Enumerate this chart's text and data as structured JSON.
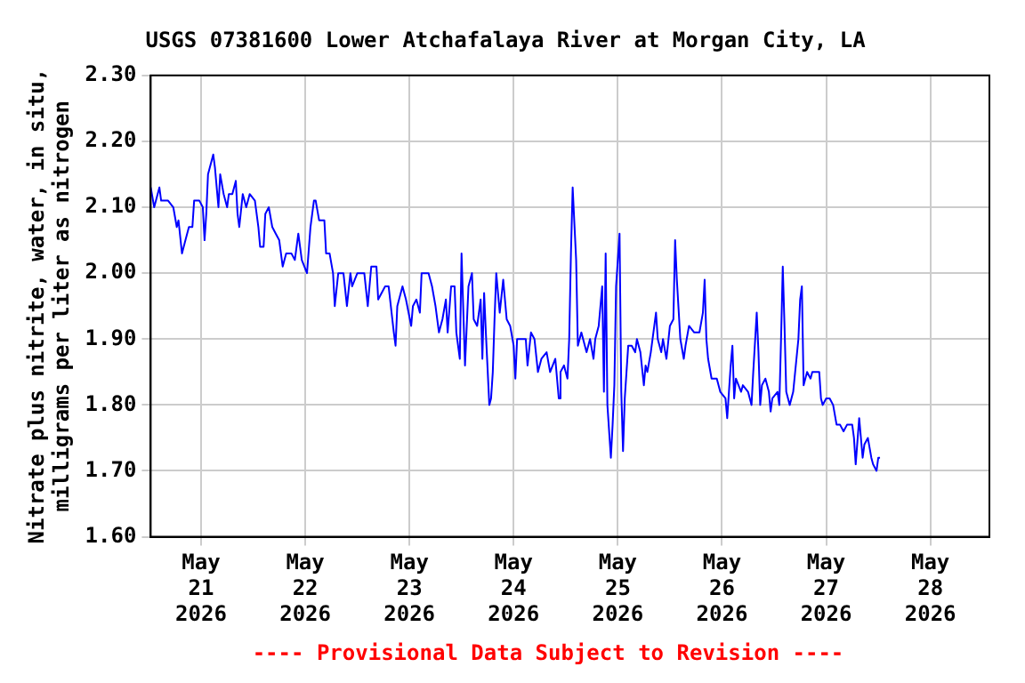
{
  "chart_data": {
    "type": "line",
    "title": "USGS 07381600 Lower Atchafalaya River at Morgan City, LA",
    "ylabel": "Nitrate plus nitrite, water, in situ,\nmilligrams per liter as nitrogen",
    "annotations": [
      "---- Provisional Data Subject to Revision ----"
    ],
    "xlim": [
      "2026-05-20T12:24",
      "2026-05-28T13:36"
    ],
    "xticks": [
      {
        "value": "2026-05-21",
        "label": "May 21 2026"
      },
      {
        "value": "2026-05-22",
        "label": "May 22 2026"
      },
      {
        "value": "2026-05-23",
        "label": "May 23 2026"
      },
      {
        "value": "2026-05-24",
        "label": "May 24 2026"
      },
      {
        "value": "2026-05-25",
        "label": "May 25 2026"
      },
      {
        "value": "2026-05-26",
        "label": "May 26 2026"
      },
      {
        "value": "2026-05-27",
        "label": "May 27 2026"
      },
      {
        "value": "2026-05-28",
        "label": "May 28 2026"
      }
    ],
    "ylim": [
      1.6,
      2.3
    ],
    "yticks": [
      {
        "value": 1.6,
        "label": "1.60"
      },
      {
        "value": 1.7,
        "label": "1.70"
      },
      {
        "value": 1.8,
        "label": "1.80"
      },
      {
        "value": 1.9,
        "label": "1.90"
      },
      {
        "value": 2.0,
        "label": "2.00"
      },
      {
        "value": 2.1,
        "label": "2.10"
      },
      {
        "value": 2.2,
        "label": "2.20"
      },
      {
        "value": 2.3,
        "label": "2.30"
      }
    ],
    "grid": true,
    "legend": false,
    "marker": "none",
    "line_style": "solid",
    "x": [
      "2026-05-20T12:24",
      "2026-05-20T13:12",
      "2026-05-20T14:24",
      "2026-05-20T14:48",
      "2026-05-20T16:24",
      "2026-05-20T17:36",
      "2026-05-20T18:24",
      "2026-05-20T18:48",
      "2026-05-20T19:36",
      "2026-05-20T20:24",
      "2026-05-20T21:12",
      "2026-05-20T22:00",
      "2026-05-20T22:24",
      "2026-05-20T23:36",
      "2026-05-21T00:24",
      "2026-05-21T00:48",
      "2026-05-21T01:12",
      "2026-05-21T01:36",
      "2026-05-21T02:24",
      "2026-05-21T02:48",
      "2026-05-21T03:12",
      "2026-05-21T04:00",
      "2026-05-21T04:24",
      "2026-05-21T05:12",
      "2026-05-21T06:00",
      "2026-05-21T06:24",
      "2026-05-21T07:12",
      "2026-05-21T08:00",
      "2026-05-21T08:24",
      "2026-05-21T08:48",
      "2026-05-21T09:36",
      "2026-05-21T10:24",
      "2026-05-21T11:12",
      "2026-05-21T12:24",
      "2026-05-21T13:12",
      "2026-05-21T13:36",
      "2026-05-21T14:24",
      "2026-05-21T14:48",
      "2026-05-21T15:36",
      "2026-05-21T16:24",
      "2026-05-21T17:12",
      "2026-05-21T18:00",
      "2026-05-21T18:48",
      "2026-05-21T19:36",
      "2026-05-21T20:48",
      "2026-05-21T21:36",
      "2026-05-21T22:24",
      "2026-05-21T23:12",
      "2026-05-22T00:24",
      "2026-05-22T01:12",
      "2026-05-22T02:00",
      "2026-05-22T02:24",
      "2026-05-22T03:12",
      "2026-05-22T04:24",
      "2026-05-22T04:48",
      "2026-05-22T05:36",
      "2026-05-22T06:24",
      "2026-05-22T06:48",
      "2026-05-22T07:36",
      "2026-05-22T08:48",
      "2026-05-22T09:36",
      "2026-05-22T10:24",
      "2026-05-22T10:48",
      "2026-05-22T12:00",
      "2026-05-22T12:48",
      "2026-05-22T13:36",
      "2026-05-22T14:24",
      "2026-05-22T15:12",
      "2026-05-22T16:24",
      "2026-05-22T16:48",
      "2026-05-22T18:24",
      "2026-05-22T19:12",
      "2026-05-22T20:24",
      "2026-05-22T20:48",
      "2026-05-22T21:12",
      "2026-05-22T22:24",
      "2026-05-22T23:12",
      "2026-05-23T00:24",
      "2026-05-23T00:48",
      "2026-05-23T01:36",
      "2026-05-23T02:24",
      "2026-05-23T02:48",
      "2026-05-23T04:24",
      "2026-05-23T05:12",
      "2026-05-23T06:00",
      "2026-05-23T06:48",
      "2026-05-23T07:36",
      "2026-05-23T08:24",
      "2026-05-23T08:48",
      "2026-05-23T09:36",
      "2026-05-23T10:24",
      "2026-05-23T10:48",
      "2026-05-23T11:36",
      "2026-05-23T12:00",
      "2026-05-23T12:48",
      "2026-05-23T13:36",
      "2026-05-23T14:24",
      "2026-05-23T14:48",
      "2026-05-23T15:36",
      "2026-05-23T16:24",
      "2026-05-23T16:48",
      "2026-05-23T17:12",
      "2026-05-23T17:36",
      "2026-05-23T18:24",
      "2026-05-23T18:48",
      "2026-05-23T19:12",
      "2026-05-23T19:36",
      "2026-05-23T20:00",
      "2026-05-23T20:48",
      "2026-05-23T21:36",
      "2026-05-23T22:24",
      "2026-05-23T23:12",
      "2026-05-24T00:00",
      "2026-05-24T00:24",
      "2026-05-24T00:48",
      "2026-05-24T02:00",
      "2026-05-24T02:48",
      "2026-05-24T03:12",
      "2026-05-24T04:00",
      "2026-05-24T04:48",
      "2026-05-24T05:36",
      "2026-05-24T06:24",
      "2026-05-24T07:36",
      "2026-05-24T08:24",
      "2026-05-24T09:36",
      "2026-05-24T10:24",
      "2026-05-24T10:48",
      "2026-05-24T11:36",
      "2026-05-24T12:24",
      "2026-05-24T12:48",
      "2026-05-24T13:12",
      "2026-05-24T13:36",
      "2026-05-24T14:24",
      "2026-05-24T14:48",
      "2026-05-24T15:36",
      "2026-05-24T16:48",
      "2026-05-24T17:36",
      "2026-05-24T18:24",
      "2026-05-24T18:48",
      "2026-05-24T19:36",
      "2026-05-24T20:24",
      "2026-05-24T20:48",
      "2026-05-24T21:12",
      "2026-05-24T21:36",
      "2026-05-24T22:24",
      "2026-05-24T22:48",
      "2026-05-24T23:12",
      "2026-05-24T23:36",
      "2026-05-25T00:24",
      "2026-05-25T00:48",
      "2026-05-25T01:12",
      "2026-05-25T01:36",
      "2026-05-25T02:24",
      "2026-05-25T03:12",
      "2026-05-25T04:00",
      "2026-05-25T04:24",
      "2026-05-25T05:12",
      "2026-05-25T06:00",
      "2026-05-25T06:24",
      "2026-05-25T06:48",
      "2026-05-25T07:36",
      "2026-05-25T08:48",
      "2026-05-25T09:12",
      "2026-05-25T10:00",
      "2026-05-25T10:24",
      "2026-05-25T11:12",
      "2026-05-25T12:00",
      "2026-05-25T12:48",
      "2026-05-25T13:12",
      "2026-05-25T13:36",
      "2026-05-25T14:24",
      "2026-05-25T15:12",
      "2026-05-25T15:36",
      "2026-05-25T16:24",
      "2026-05-25T17:36",
      "2026-05-25T18:48",
      "2026-05-25T19:36",
      "2026-05-25T20:00",
      "2026-05-25T20:24",
      "2026-05-25T20:48",
      "2026-05-25T21:36",
      "2026-05-25T22:48",
      "2026-05-25T23:36",
      "2026-05-26T00:48",
      "2026-05-26T01:12",
      "2026-05-26T02:00",
      "2026-05-26T02:24",
      "2026-05-26T02:48",
      "2026-05-26T03:12",
      "2026-05-26T04:24",
      "2026-05-26T04:48",
      "2026-05-26T06:00",
      "2026-05-26T06:48",
      "2026-05-26T07:12",
      "2026-05-26T08:00",
      "2026-05-26T08:24",
      "2026-05-26T08:48",
      "2026-05-26T09:12",
      "2026-05-26T10:00",
      "2026-05-26T10:48",
      "2026-05-26T11:12",
      "2026-05-26T11:36",
      "2026-05-26T12:48",
      "2026-05-26T13:12",
      "2026-05-26T13:36",
      "2026-05-26T14:00",
      "2026-05-26T14:24",
      "2026-05-26T14:48",
      "2026-05-26T15:36",
      "2026-05-26T16:24",
      "2026-05-26T17:36",
      "2026-05-26T18:00",
      "2026-05-26T18:24",
      "2026-05-26T18:48",
      "2026-05-26T19:36",
      "2026-05-26T20:24",
      "2026-05-26T20:48",
      "2026-05-26T22:24",
      "2026-05-26T22:48",
      "2026-05-26T23:12",
      "2026-05-27T00:00",
      "2026-05-27T00:48",
      "2026-05-27T01:36",
      "2026-05-27T02:24",
      "2026-05-27T03:12",
      "2026-05-27T04:00",
      "2026-05-27T04:48",
      "2026-05-27T06:00",
      "2026-05-27T06:24",
      "2026-05-27T06:48",
      "2026-05-27T07:36",
      "2026-05-27T08:24",
      "2026-05-27T08:48",
      "2026-05-27T09:36",
      "2026-05-27T10:24",
      "2026-05-27T10:48",
      "2026-05-27T11:36",
      "2026-05-27T12:00",
      "2026-05-27T12:24"
    ],
    "series": [
      {
        "color": "#0000ff",
        "values": [
          2.13,
          2.1,
          2.13,
          2.11,
          2.11,
          2.1,
          2.07,
          2.08,
          2.03,
          2.05,
          2.07,
          2.07,
          2.11,
          2.11,
          2.1,
          2.05,
          2.09,
          2.15,
          2.17,
          2.18,
          2.16,
          2.1,
          2.15,
          2.12,
          2.1,
          2.12,
          2.12,
          2.14,
          2.09,
          2.07,
          2.12,
          2.1,
          2.12,
          2.11,
          2.07,
          2.04,
          2.04,
          2.09,
          2.1,
          2.07,
          2.06,
          2.05,
          2.01,
          2.03,
          2.03,
          2.02,
          2.06,
          2.02,
          2.0,
          2.07,
          2.11,
          2.11,
          2.08,
          2.08,
          2.03,
          2.03,
          2.0,
          1.95,
          2.0,
          2.0,
          1.95,
          2.0,
          1.98,
          2.0,
          2.0,
          2.0,
          1.95,
          2.01,
          2.01,
          1.96,
          1.98,
          1.98,
          1.91,
          1.89,
          1.95,
          1.98,
          1.96,
          1.92,
          1.95,
          1.96,
          1.94,
          2.0,
          2.0,
          1.98,
          1.95,
          1.91,
          1.93,
          1.96,
          1.91,
          1.98,
          1.98,
          1.91,
          1.87,
          2.03,
          1.86,
          1.98,
          2.0,
          1.93,
          1.92,
          1.96,
          1.87,
          1.97,
          1.91,
          1.8,
          1.81,
          1.85,
          1.93,
          2.0,
          1.94,
          1.99,
          1.93,
          1.92,
          1.89,
          1.84,
          1.9,
          1.9,
          1.9,
          1.86,
          1.91,
          1.9,
          1.85,
          1.87,
          1.88,
          1.85,
          1.87,
          1.81,
          1.85,
          1.86,
          1.84,
          1.9,
          2.03,
          2.13,
          2.02,
          1.89,
          1.91,
          1.88,
          1.9,
          1.87,
          1.9,
          1.92,
          1.98,
          1.82,
          2.03,
          1.8,
          1.72,
          1.77,
          1.83,
          1.98,
          2.06,
          1.82,
          1.73,
          1.81,
          1.89,
          1.89,
          1.88,
          1.9,
          1.88,
          1.83,
          1.86,
          1.85,
          1.88,
          1.94,
          1.9,
          1.88,
          1.9,
          1.87,
          1.92,
          1.93,
          2.05,
          1.99,
          1.9,
          1.87,
          1.89,
          1.92,
          1.91,
          1.91,
          1.94,
          1.99,
          1.9,
          1.87,
          1.84,
          1.84,
          1.82,
          1.81,
          1.78,
          1.86,
          1.89,
          1.81,
          1.84,
          1.82,
          1.83,
          1.82,
          1.8,
          1.85,
          1.94,
          1.88,
          1.8,
          1.83,
          1.84,
          1.82,
          1.79,
          1.81,
          1.82,
          1.8,
          1.9,
          2.01,
          1.92,
          1.82,
          1.8,
          1.82,
          1.9,
          1.96,
          1.98,
          1.83,
          1.85,
          1.84,
          1.85,
          1.85,
          1.81,
          1.8,
          1.81,
          1.81,
          1.8,
          1.77,
          1.77,
          1.76,
          1.77,
          1.77,
          1.75,
          1.71,
          1.78,
          1.72,
          1.74,
          1.75,
          1.72,
          1.71,
          1.7,
          1.72,
          1.72
        ]
      }
    ]
  }
}
